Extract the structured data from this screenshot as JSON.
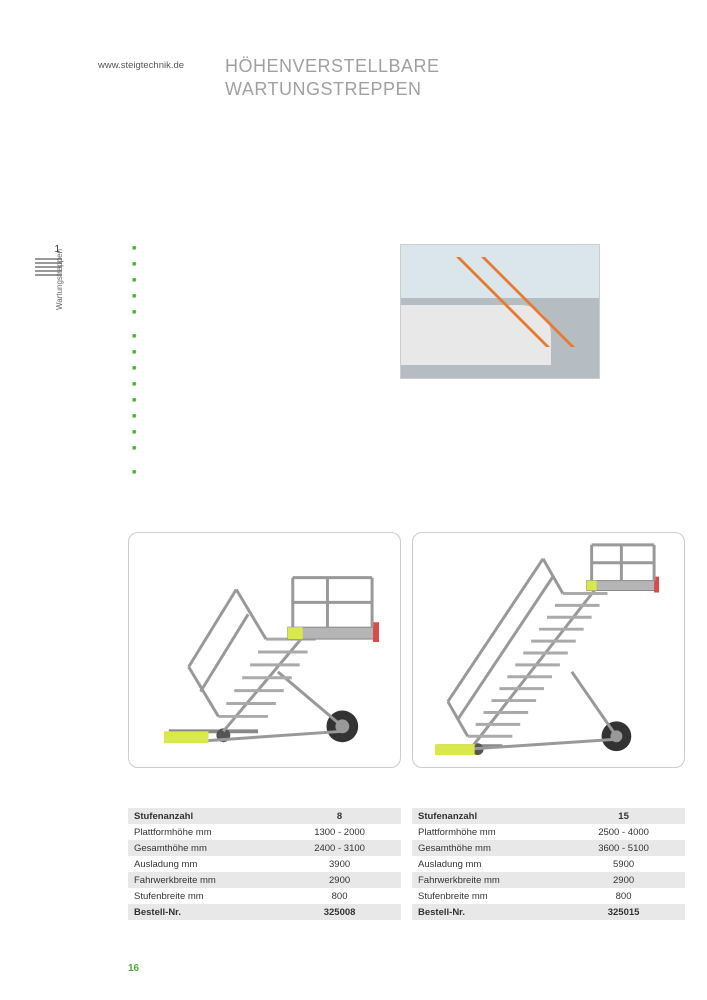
{
  "header_url": "www.steigtechnik.de",
  "title_line1": "HÖHENVERSTELLBARE",
  "title_line2": "WARTUNGSTREPPEN",
  "side_chapter": "1",
  "side_label": "Wartungstreppen",
  "spec_rows": [
    {
      "label": "Stufenanzahl",
      "left": "8",
      "right": "15"
    },
    {
      "label": "Plattformhöhe mm",
      "left": "1300 - 2000",
      "right": "2500 - 4000"
    },
    {
      "label": "Gesamthöhe mm",
      "left": "2400 - 3100",
      "right": "3600 - 5100"
    },
    {
      "label": "Ausladung mm",
      "left": "3900",
      "right": "5900"
    },
    {
      "label": "Fahrwerkbreite mm",
      "left": "2900",
      "right": "2900"
    },
    {
      "label": "Stufenbreite mm",
      "left": "800",
      "right": "800"
    },
    {
      "label": "Bestell-Nr.",
      "left": "325008",
      "right": "325015"
    }
  ],
  "page_number": "16",
  "colors": {
    "accent": "#4caf3a",
    "title": "#a0a0a0",
    "table_alt": "#e8e8e8",
    "border": "#cccccc"
  }
}
